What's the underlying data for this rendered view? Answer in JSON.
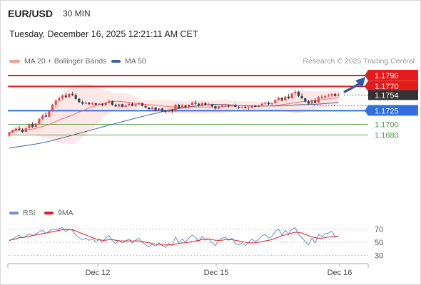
{
  "header": {
    "symbol": "EUR/USD",
    "interval": "30 MIN",
    "datetime": "Tuesday, December 16, 2025 12:21:11 AM CET",
    "credit": "Research © 2025 Trading Central"
  },
  "legend": {
    "ma20_label": "MA 20 + Bollinger Bands",
    "ma50_label": "MA 50",
    "rsi_label": "RSI",
    "rsi_ma_label": "9MA"
  },
  "colors": {
    "up_candle": "#e74b4b",
    "down_candle": "#37474f",
    "ma20": "#f26b6b",
    "bollinger_fill": "#fde3e3",
    "ma50": "#3e62a0",
    "resistance": "#e51b1b",
    "pivot": "#2f6fe0",
    "support": "#4b9a3a",
    "last_price": "#333333",
    "rsi": "#6a8fd6",
    "rsi_ma": "#e51b1b",
    "arrow": "#2c59a8"
  },
  "chart_data": [
    {
      "type": "candlestick",
      "x_labels": [
        "Dec 12",
        "Dec 15",
        "Dec 16"
      ],
      "ylim": [
        1.164,
        1.1795
      ],
      "levels": [
        {
          "value": 1.179,
          "label": "1.1790",
          "kind": "resistance"
        },
        {
          "value": 1.177,
          "label": "1.1770",
          "kind": "resistance"
        },
        {
          "value": 1.1754,
          "label": "1.1754",
          "kind": "last"
        },
        {
          "value": 1.1725,
          "label": "1.1725",
          "kind": "pivot"
        },
        {
          "value": 1.17,
          "label": "1.1700",
          "kind": "support"
        },
        {
          "value": 1.168,
          "label": "1.1680",
          "kind": "support"
        }
      ],
      "candles": [
        [
          1.1679,
          1.1686,
          1.1677,
          1.1685
        ],
        [
          1.1685,
          1.169,
          1.1683,
          1.1689
        ],
        [
          1.1689,
          1.1694,
          1.1686,
          1.1692
        ],
        [
          1.1692,
          1.1697,
          1.1688,
          1.169
        ],
        [
          1.169,
          1.1693,
          1.1684,
          1.1686
        ],
        [
          1.1686,
          1.1694,
          1.1685,
          1.1693
        ],
        [
          1.1693,
          1.1702,
          1.1691,
          1.17
        ],
        [
          1.17,
          1.1704,
          1.1693,
          1.1695
        ],
        [
          1.1695,
          1.1702,
          1.1694,
          1.1701
        ],
        [
          1.1701,
          1.1712,
          1.1699,
          1.171
        ],
        [
          1.171,
          1.1718,
          1.1708,
          1.1716
        ],
        [
          1.1716,
          1.1722,
          1.1713,
          1.1714
        ],
        [
          1.1714,
          1.1725,
          1.1713,
          1.1724
        ],
        [
          1.1724,
          1.1738,
          1.1722,
          1.1736
        ],
        [
          1.1736,
          1.1746,
          1.173,
          1.1744
        ],
        [
          1.1744,
          1.1751,
          1.174,
          1.1748
        ],
        [
          1.1748,
          1.1755,
          1.1745,
          1.1753
        ],
        [
          1.1753,
          1.1758,
          1.1748,
          1.175
        ],
        [
          1.175,
          1.1757,
          1.1749,
          1.1756
        ],
        [
          1.1756,
          1.176,
          1.1752,
          1.1754
        ],
        [
          1.1754,
          1.1757,
          1.1745,
          1.1747
        ],
        [
          1.1747,
          1.1749,
          1.1739,
          1.1741
        ],
        [
          1.1741,
          1.1744,
          1.1736,
          1.1738
        ],
        [
          1.1738,
          1.1742,
          1.1737,
          1.174
        ],
        [
          1.174,
          1.1741,
          1.1735,
          1.1737
        ],
        [
          1.1737,
          1.1741,
          1.1735,
          1.1739
        ],
        [
          1.1739,
          1.174,
          1.1734,
          1.1736
        ],
        [
          1.1736,
          1.1739,
          1.1735,
          1.1738
        ],
        [
          1.1738,
          1.1739,
          1.1733,
          1.1735
        ],
        [
          1.1735,
          1.1741,
          1.1734,
          1.174
        ],
        [
          1.174,
          1.1746,
          1.1738,
          1.1743
        ],
        [
          1.1743,
          1.1744,
          1.1734,
          1.1736
        ],
        [
          1.1736,
          1.1738,
          1.1732,
          1.1733
        ],
        [
          1.1733,
          1.1738,
          1.1731,
          1.1737
        ],
        [
          1.1737,
          1.1738,
          1.1731,
          1.1732
        ],
        [
          1.1732,
          1.1737,
          1.1731,
          1.1735
        ],
        [
          1.1735,
          1.1739,
          1.1733,
          1.1738
        ],
        [
          1.1738,
          1.174,
          1.1733,
          1.1734
        ],
        [
          1.1734,
          1.1738,
          1.1732,
          1.1737
        ],
        [
          1.1737,
          1.1741,
          1.1735,
          1.1739
        ],
        [
          1.1739,
          1.174,
          1.1733,
          1.1734
        ],
        [
          1.1734,
          1.1735,
          1.1729,
          1.1731
        ],
        [
          1.1731,
          1.1732,
          1.1726,
          1.1728
        ],
        [
          1.1728,
          1.1733,
          1.1727,
          1.1731
        ],
        [
          1.1731,
          1.1732,
          1.1724,
          1.1726
        ],
        [
          1.1726,
          1.173,
          1.1724,
          1.1729
        ],
        [
          1.1729,
          1.1731,
          1.1723,
          1.1725
        ],
        [
          1.1725,
          1.1727,
          1.172,
          1.1723
        ],
        [
          1.1723,
          1.1728,
          1.1722,
          1.1727
        ],
        [
          1.1727,
          1.1729,
          1.1721,
          1.1724
        ],
        [
          1.1724,
          1.1738,
          1.1723,
          1.1736
        ],
        [
          1.1736,
          1.1738,
          1.1728,
          1.173
        ],
        [
          1.173,
          1.1737,
          1.1729,
          1.1735
        ],
        [
          1.1735,
          1.1736,
          1.1729,
          1.1731
        ],
        [
          1.1731,
          1.1737,
          1.1729,
          1.1736
        ],
        [
          1.1736,
          1.1742,
          1.1734,
          1.174
        ],
        [
          1.174,
          1.1744,
          1.1736,
          1.1738
        ],
        [
          1.1738,
          1.174,
          1.1732,
          1.1734
        ],
        [
          1.1734,
          1.1741,
          1.1733,
          1.1739
        ],
        [
          1.1739,
          1.1741,
          1.1734,
          1.1736
        ],
        [
          1.1736,
          1.174,
          1.1735,
          1.1737
        ],
        [
          1.1737,
          1.1738,
          1.1731,
          1.1733
        ],
        [
          1.1733,
          1.1735,
          1.1727,
          1.1729
        ],
        [
          1.1729,
          1.1734,
          1.1728,
          1.1733
        ],
        [
          1.1733,
          1.1737,
          1.1731,
          1.1735
        ],
        [
          1.1735,
          1.1738,
          1.1732,
          1.1736
        ],
        [
          1.1736,
          1.1737,
          1.1731,
          1.1734
        ],
        [
          1.1734,
          1.1737,
          1.1732,
          1.1736
        ],
        [
          1.1736,
          1.1738,
          1.1731,
          1.1732
        ],
        [
          1.1732,
          1.1734,
          1.1728,
          1.1731
        ],
        [
          1.1731,
          1.1733,
          1.1729,
          1.1732
        ],
        [
          1.1732,
          1.1735,
          1.1729,
          1.173
        ],
        [
          1.173,
          1.1733,
          1.1726,
          1.1731
        ],
        [
          1.1731,
          1.1736,
          1.1729,
          1.1734
        ],
        [
          1.1734,
          1.1736,
          1.1731,
          1.1732
        ],
        [
          1.1732,
          1.1736,
          1.1731,
          1.1735
        ],
        [
          1.1735,
          1.174,
          1.1734,
          1.1738
        ],
        [
          1.1738,
          1.1741,
          1.1736,
          1.174
        ],
        [
          1.174,
          1.1742,
          1.1735,
          1.1737
        ],
        [
          1.1737,
          1.174,
          1.1734,
          1.1739
        ],
        [
          1.1739,
          1.1746,
          1.1738,
          1.1745
        ],
        [
          1.1745,
          1.1751,
          1.1743,
          1.1749
        ],
        [
          1.1749,
          1.175,
          1.1742,
          1.1744
        ],
        [
          1.1744,
          1.1753,
          1.1743,
          1.1751
        ],
        [
          1.1751,
          1.1756,
          1.1746,
          1.1748
        ],
        [
          1.1748,
          1.1758,
          1.1747,
          1.1757
        ],
        [
          1.1757,
          1.1764,
          1.1753,
          1.176
        ],
        [
          1.176,
          1.1762,
          1.175,
          1.1752
        ],
        [
          1.1752,
          1.1757,
          1.1746,
          1.1748
        ],
        [
          1.1748,
          1.1749,
          1.174,
          1.1742
        ],
        [
          1.1742,
          1.1745,
          1.1736,
          1.1738
        ],
        [
          1.1738,
          1.1746,
          1.1737,
          1.1744
        ],
        [
          1.1744,
          1.1748,
          1.1738,
          1.174
        ],
        [
          1.174,
          1.1752,
          1.1739,
          1.175
        ],
        [
          1.175,
          1.1754,
          1.1747,
          1.1749
        ],
        [
          1.1749,
          1.1755,
          1.1748,
          1.1752
        ],
        [
          1.1752,
          1.1756,
          1.175,
          1.1753
        ],
        [
          1.1753,
          1.1757,
          1.175,
          1.1756
        ],
        [
          1.1756,
          1.1758,
          1.1751,
          1.1752
        ],
        [
          1.1752,
          1.1758,
          1.1751,
          1.1754
        ]
      ]
    },
    {
      "type": "line",
      "name": "RSI",
      "ylim": [
        25,
        75
      ],
      "ticks": [
        70,
        50,
        30
      ],
      "x_labels": [
        "Dec 12",
        "Dec 15",
        "Dec 16"
      ],
      "series": [
        {
          "name": "RSI",
          "values": [
            52,
            55,
            58,
            61,
            57,
            59,
            63,
            60,
            62,
            66,
            68,
            63,
            67,
            70,
            69,
            71,
            72,
            66,
            70,
            68,
            61,
            57,
            54,
            56,
            53,
            55,
            51,
            54,
            50,
            56,
            60,
            52,
            48,
            53,
            49,
            52,
            55,
            49,
            53,
            56,
            50,
            46,
            43,
            47,
            44,
            49,
            45,
            42,
            48,
            45,
            58,
            49,
            55,
            50,
            56,
            61,
            57,
            51,
            59,
            53,
            55,
            49,
            45,
            52,
            56,
            58,
            53,
            56,
            48,
            46,
            49,
            45,
            50,
            55,
            51,
            54,
            60,
            62,
            56,
            59,
            66,
            70,
            61,
            68,
            63,
            70,
            72,
            62,
            57,
            51,
            46,
            56,
            49,
            62,
            58,
            63,
            64,
            67,
            58,
            60
          ]
        },
        {
          "name": "9MA",
          "values": [
            53,
            54,
            55,
            57,
            57,
            58,
            59,
            60,
            61,
            62,
            63,
            64,
            65,
            66,
            67,
            68,
            69,
            69,
            69,
            69,
            67,
            65,
            63,
            61,
            59,
            57,
            55,
            54,
            53,
            53,
            54,
            54,
            53,
            52,
            52,
            52,
            52,
            52,
            52,
            52,
            51,
            50,
            49,
            48,
            47,
            47,
            46,
            46,
            46,
            46,
            47,
            48,
            49,
            49,
            50,
            51,
            52,
            53,
            54,
            55,
            55,
            54,
            53,
            53,
            53,
            54,
            54,
            54,
            53,
            52,
            51,
            50,
            49,
            49,
            49,
            50,
            51,
            52,
            53,
            54,
            56,
            58,
            60,
            61,
            62,
            64,
            65,
            65,
            64,
            62,
            60,
            58,
            57,
            56,
            56,
            57,
            58,
            58,
            59,
            59
          ]
        }
      ]
    }
  ]
}
